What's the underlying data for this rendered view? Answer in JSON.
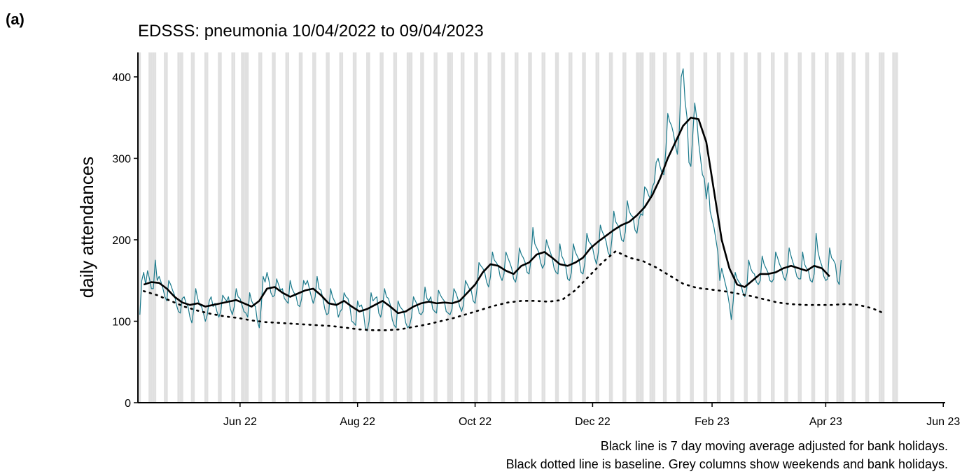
{
  "chart_data": {
    "type": "line",
    "panel_label": "(a)",
    "title": "EDSSS: pneumonia 10/04/2022 to 09/04/2023",
    "ylabel": "daily attendances",
    "notes": [
      "Black line is 7 day moving average adjusted for bank holidays.",
      "Black dotted line is baseline. Grey columns show weekends and bank holidays."
    ],
    "xlim": [
      -1,
      418
    ],
    "ylim": [
      0,
      430
    ],
    "xticks": [
      {
        "value": 52,
        "label": "Jun 22"
      },
      {
        "value": 113,
        "label": "Aug 22"
      },
      {
        "value": 174,
        "label": "Oct 22"
      },
      {
        "value": 235,
        "label": "Dec 22"
      },
      {
        "value": 297,
        "label": "Feb 23"
      },
      {
        "value": 356,
        "label": "Apr 23"
      },
      {
        "value": 417,
        "label": "Jun 23"
      }
    ],
    "yticks": [
      0,
      100,
      200,
      300,
      400
    ],
    "shade_color": "#e0e0e0",
    "shaded_days": [
      0,
      5,
      6,
      7,
      8,
      13,
      14,
      20,
      21,
      22,
      27,
      28,
      34,
      35,
      41,
      42,
      48,
      49,
      53,
      54,
      55,
      56,
      62,
      63,
      69,
      70,
      76,
      77,
      83,
      84,
      90,
      91,
      97,
      98,
      104,
      105,
      111,
      112,
      118,
      119,
      125,
      126,
      132,
      133,
      139,
      140,
      141,
      146,
      147,
      153,
      154,
      160,
      161,
      162,
      167,
      168,
      174,
      175,
      181,
      182,
      188,
      189,
      195,
      196,
      202,
      203,
      209,
      210,
      216,
      217,
      223,
      224,
      230,
      231,
      237,
      238,
      244,
      245,
      251,
      252,
      258,
      259,
      260,
      261,
      265,
      266,
      267,
      272,
      273,
      279,
      280,
      286,
      287,
      293,
      294,
      300,
      301,
      307,
      308,
      314,
      315,
      321,
      322,
      328,
      329,
      335,
      336,
      342,
      343,
      349,
      350,
      356,
      357,
      362,
      363,
      364,
      365,
      370,
      371,
      377,
      378,
      384,
      385,
      386,
      391,
      392,
      393
    ],
    "x": [
      0,
      1,
      2,
      3,
      4,
      5,
      6,
      7,
      8,
      9,
      10,
      11,
      12,
      13,
      14,
      15,
      16,
      17,
      18,
      19,
      20,
      21,
      22,
      23,
      24,
      25,
      26,
      27,
      28,
      29,
      30,
      31,
      32,
      33,
      34,
      35,
      36,
      37,
      38,
      39,
      40,
      41,
      42,
      43,
      44,
      45,
      46,
      47,
      48,
      49,
      50,
      51,
      52,
      53,
      54,
      55,
      56,
      57,
      58,
      59,
      60,
      61,
      62,
      63,
      64,
      65,
      66,
      67,
      68,
      69,
      70,
      71,
      72,
      73,
      74,
      75,
      76,
      77,
      78,
      79,
      80,
      81,
      82,
      83,
      84,
      85,
      86,
      87,
      88,
      89,
      90,
      91,
      92,
      93,
      94,
      95,
      96,
      97,
      98,
      99,
      100,
      101,
      102,
      103,
      104,
      105,
      106,
      107,
      108,
      109,
      110,
      111,
      112,
      113,
      114,
      115,
      116,
      117,
      118,
      119,
      120,
      121,
      122,
      123,
      124,
      125,
      126,
      127,
      128,
      129,
      130,
      131,
      132,
      133,
      134,
      135,
      136,
      137,
      138,
      139,
      140,
      141,
      142,
      143,
      144,
      145,
      146,
      147,
      148,
      149,
      150,
      151,
      152,
      153,
      154,
      155,
      156,
      157,
      158,
      159,
      160,
      161,
      162,
      163,
      164,
      165,
      166,
      167,
      168,
      169,
      170,
      171,
      172,
      173,
      174,
      175,
      176,
      177,
      178,
      179,
      180,
      181,
      182,
      183,
      184,
      185,
      186,
      187,
      188,
      189,
      190,
      191,
      192,
      193,
      194,
      195,
      196,
      197,
      198,
      199,
      200,
      201,
      202,
      203,
      204,
      205,
      206,
      207,
      208,
      209,
      210,
      211,
      212,
      213,
      214,
      215,
      216,
      217,
      218,
      219,
      220,
      221,
      222,
      223,
      224,
      225,
      226,
      227,
      228,
      229,
      230,
      231,
      232,
      233,
      234,
      235,
      236,
      237,
      238,
      239,
      240,
      241,
      242,
      243,
      244,
      245,
      246,
      247,
      248,
      249,
      250,
      251,
      252,
      253,
      254,
      255,
      256,
      257,
      258,
      259,
      260,
      261,
      262,
      263,
      264,
      265,
      266,
      267,
      268,
      269,
      270,
      271,
      272,
      273,
      274,
      275,
      276,
      277,
      278,
      279,
      280,
      281,
      282,
      283,
      284,
      285,
      286,
      287,
      288,
      289,
      290,
      291,
      292,
      293,
      294,
      295,
      296,
      297,
      298,
      299,
      300,
      301,
      302,
      303,
      304,
      305,
      306,
      307,
      308,
      309,
      310,
      311,
      312,
      313,
      314,
      315,
      316,
      317,
      318,
      319,
      320,
      321,
      322,
      323,
      324,
      325,
      326,
      327,
      328,
      329,
      330,
      331,
      332,
      333,
      334,
      335,
      336,
      337,
      338,
      339,
      340,
      341,
      342,
      343,
      344,
      345,
      346,
      347,
      348,
      349,
      350,
      351,
      352,
      353,
      354,
      355,
      356,
      357,
      358,
      359,
      360,
      361,
      362,
      363,
      364
    ],
    "series": [
      {
        "color": "#1b7a8c",
        "width": 1.2,
        "values": [
          108,
          150,
          160,
          145,
          162,
          152,
          140,
          140,
          175,
          150,
          155,
          148,
          140,
          130,
          125,
          150,
          145,
          138,
          132,
          120,
          112,
          110,
          128,
          130,
          122,
          118,
          105,
          98,
          115,
          140,
          128,
          120,
          118,
          110,
          100,
          108,
          125,
          130,
          118,
          122,
          112,
          105,
          112,
          132,
          128,
          125,
          130,
          115,
          108,
          118,
          140,
          130,
          128,
          120,
          112,
          110,
          105,
          135,
          125,
          120,
          118,
          100,
          92,
          118,
          155,
          148,
          160,
          150,
          135,
          130,
          132,
          152,
          145,
          138,
          140,
          128,
          125,
          122,
          150,
          140,
          135,
          132,
          120,
          118,
          128,
          150,
          145,
          150,
          140,
          130,
          122,
          130,
          155,
          140,
          138,
          128,
          115,
          108,
          110,
          140,
          130,
          125,
          120,
          105,
          112,
          115,
          135,
          130,
          128,
          118,
          100,
          98,
          95,
          125,
          118,
          120,
          112,
          92,
          88,
          100,
          135,
          125,
          128,
          130,
          110,
          105,
          118,
          140,
          130,
          128,
          120,
          102,
          95,
          92,
          125,
          118,
          115,
          112,
          98,
          92,
          95,
          105,
          130,
          125,
          120,
          110,
          108,
          112,
          142,
          128,
          125,
          130,
          115,
          112,
          110,
          138,
          132,
          128,
          125,
          112,
          110,
          108,
          115,
          140,
          135,
          128,
          118,
          112,
          120,
          150,
          145,
          140,
          138,
          125,
          122,
          140,
          172,
          168,
          165,
          160,
          148,
          142,
          155,
          185,
          175,
          172,
          168,
          155,
          150,
          158,
          185,
          178,
          172,
          165,
          152,
          148,
          160,
          190,
          182,
          178,
          172,
          160,
          158,
          175,
          215,
          195,
          190,
          185,
          172,
          165,
          170,
          200,
          192,
          185,
          178,
          165,
          160,
          158,
          195,
          180,
          175,
          168,
          152,
          150,
          160,
          195,
          185,
          180,
          175,
          160,
          158,
          172,
          208,
          198,
          195,
          190,
          178,
          170,
          185,
          218,
          210,
          205,
          198,
          185,
          180,
          200,
          235,
          222,
          218,
          215,
          200,
          198,
          210,
          248,
          235,
          230,
          228,
          212,
          208,
          225,
          232,
          230,
          265,
          262,
          255,
          250,
          265,
          270,
          295,
          300,
          290,
          282,
          280,
          310,
          355,
          345,
          340,
          330,
          315,
          305,
          335,
          400,
          410,
          370,
          350,
          295,
          290,
          330,
          368,
          350,
          320,
          300,
          280,
          275,
          250,
          270,
          235,
          225,
          215,
          200,
          185,
          150,
          165,
          155,
          145,
          135,
          120,
          102,
          125,
          160,
          152,
          148,
          145,
          135,
          130,
          140,
          175,
          165,
          160,
          158,
          148,
          145,
          150,
          180,
          170,
          165,
          160,
          150,
          148,
          152,
          185,
          178,
          170,
          165,
          155,
          150,
          160,
          190,
          180,
          172,
          165,
          155,
          152,
          152,
          185,
          170,
          165,
          162,
          150,
          148,
          158,
          208,
          185,
          175,
          168,
          155,
          150,
          152,
          190,
          178,
          175,
          170,
          150,
          145,
          175
        ]
      },
      {
        "color": "#000000",
        "width": 2.6,
        "x": [
          2,
          6,
          10,
          14,
          18,
          22,
          26,
          30,
          34,
          38,
          42,
          46,
          50,
          54,
          58,
          62,
          66,
          70,
          74,
          78,
          82,
          86,
          90,
          94,
          98,
          102,
          106,
          110,
          114,
          118,
          122,
          126,
          130,
          134,
          138,
          142,
          146,
          150,
          154,
          158,
          162,
          166,
          170,
          174,
          178,
          182,
          186,
          190,
          194,
          198,
          202,
          206,
          210,
          214,
          218,
          222,
          226,
          230,
          234,
          238,
          242,
          246,
          250,
          254,
          258,
          262,
          266,
          270,
          274,
          278,
          282,
          286,
          290,
          294,
          298,
          302,
          306,
          310,
          314,
          318,
          322,
          326,
          330,
          334,
          338,
          342,
          346,
          350,
          354,
          358
        ],
        "values": [
          145,
          148,
          147,
          140,
          130,
          123,
          120,
          122,
          118,
          120,
          122,
          124,
          126,
          122,
          118,
          125,
          140,
          142,
          135,
          130,
          134,
          138,
          140,
          132,
          122,
          120,
          125,
          118,
          112,
          115,
          120,
          125,
          118,
          110,
          112,
          118,
          122,
          124,
          122,
          123,
          122,
          125,
          135,
          145,
          160,
          170,
          168,
          162,
          158,
          168,
          172,
          182,
          185,
          178,
          170,
          168,
          172,
          178,
          190,
          198,
          205,
          212,
          218,
          222,
          230,
          240,
          255,
          275,
          300,
          320,
          340,
          350,
          348,
          320,
          260,
          200,
          165,
          145,
          142,
          150,
          158,
          158,
          160,
          165,
          168,
          165,
          162,
          168,
          165,
          155
        ]
      },
      {
        "color": "#000000",
        "width": 2.6,
        "dash": "2 7",
        "x": [
          2,
          9,
          16,
          23,
          30,
          37,
          44,
          51,
          58,
          65,
          72,
          79,
          86,
          93,
          100,
          107,
          114,
          121,
          128,
          135,
          142,
          149,
          156,
          163,
          170,
          177,
          184,
          191,
          198,
          205,
          212,
          219,
          226,
          233,
          240,
          247,
          254,
          261,
          268,
          275,
          282,
          289,
          296,
          303,
          310,
          317,
          324,
          331,
          338,
          345,
          352,
          359,
          366,
          373,
          380,
          387
        ],
        "values": [
          137,
          132,
          125,
          118,
          113,
          109,
          106,
          104,
          101,
          99,
          98,
          97,
          96,
          95,
          94,
          92,
          90,
          89,
          89,
          90,
          93,
          96,
          100,
          104,
          109,
          114,
          119,
          123,
          125,
          125,
          124,
          126,
          138,
          155,
          172,
          186,
          178,
          174,
          166,
          156,
          146,
          141,
          139,
          137,
          134,
          131,
          127,
          123,
          121,
          120,
          120,
          120,
          121,
          120,
          116,
          109
        ]
      }
    ]
  }
}
